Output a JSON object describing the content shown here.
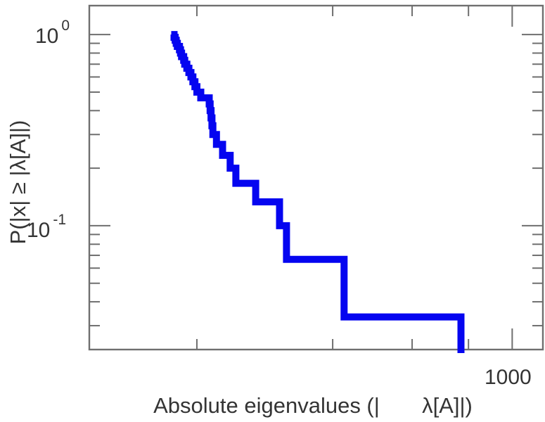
{
  "figure": {
    "background": "#ffffff"
  },
  "chart_data": {
    "type": "line",
    "subtype": "empirical_ccdf_step",
    "title": "",
    "xlabel": "Absolute eigenvalues (|       λ[A]|)",
    "ylabel": "P(|x| ≥ |λ[A]|)",
    "x_scale": "log",
    "y_scale": "log",
    "x_range": [
      115.5,
      1169.6
    ],
    "y_range": [
      0.0225,
      1.417
    ],
    "x_major_ticks": [
      {
        "value": 1000,
        "label": "1000"
      }
    ],
    "x_minor_ticks": [
      200,
      400,
      600,
      800
    ],
    "y_major_ticks": [
      {
        "value": 1.0,
        "base": "10",
        "exp": "0"
      },
      {
        "value": 0.1,
        "base": "10",
        "exp": "-1"
      }
    ],
    "y_minor_ticks": [
      0.9,
      0.8,
      0.7,
      0.6,
      0.5,
      0.4,
      0.3,
      0.2,
      0.09,
      0.08,
      0.07,
      0.06,
      0.05,
      0.04,
      0.03
    ],
    "n_samples": 30,
    "ccdf_start_p": 1.0,
    "step_down_per_sample": 0.0333,
    "eigenvalues_abs_sorted": [
      178,
      179,
      180,
      181,
      183,
      184,
      185,
      187,
      188,
      190,
      192,
      194,
      196,
      198,
      200,
      204,
      213,
      214,
      215,
      216,
      217,
      221,
      228,
      237,
      244,
      270,
      305,
      316,
      424,
      770
    ],
    "grid": false,
    "legend": false,
    "colors": {
      "curve": "#0505f0",
      "axis": "#6f6f6f",
      "text": "#343434"
    }
  }
}
